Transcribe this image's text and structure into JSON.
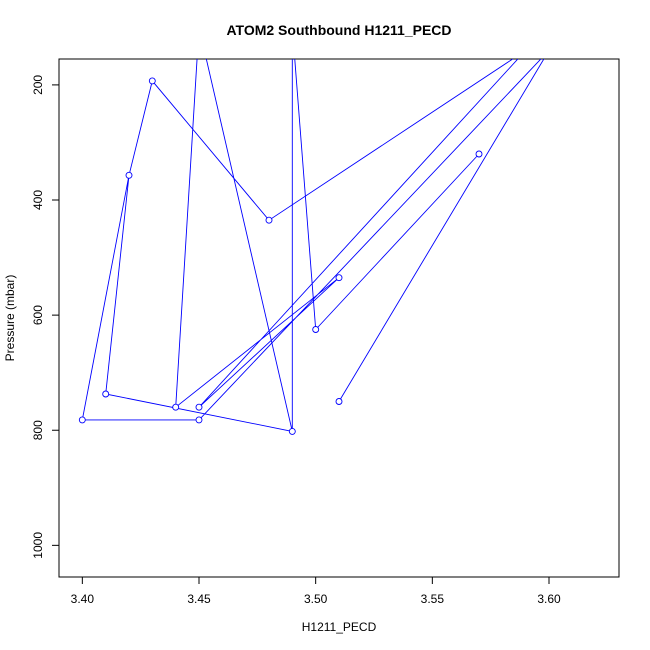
{
  "chart_data": {
    "type": "line",
    "title": "ATOM2 Southbound H1211_PECD",
    "xlabel": "H1211_PECD",
    "ylabel": "Pressure (mbar)",
    "xlim": [
      3.39,
      3.63
    ],
    "ylim": [
      1055,
      155
    ],
    "y_reversed": true,
    "x_ticks": [
      3.4,
      3.45,
      3.5,
      3.55,
      3.6
    ],
    "x_tick_labels": [
      "3.40",
      "3.45",
      "3.50",
      "3.55",
      "3.60"
    ],
    "y_ticks": [
      200,
      400,
      600,
      800,
      1000
    ],
    "y_tick_labels": [
      "200",
      "400",
      "600",
      "800",
      "1000"
    ],
    "series_color": "#0000ff",
    "points": [
      {
        "x": 3.51,
        "y": 750
      },
      {
        "x": 3.6,
        "y": 140
      },
      {
        "x": 3.45,
        "y": 782
      },
      {
        "x": 3.4,
        "y": 782
      },
      {
        "x": 3.42,
        "y": 357
      },
      {
        "x": 3.41,
        "y": 737
      },
      {
        "x": 3.49,
        "y": 802
      },
      {
        "x": 3.45,
        "y": 100
      },
      {
        "x": 3.44,
        "y": 760
      },
      {
        "x": 3.51,
        "y": 535
      },
      {
        "x": 3.45,
        "y": 760
      },
      {
        "x": 3.59,
        "y": 140
      },
      {
        "x": 3.48,
        "y": 435
      },
      {
        "x": 3.43,
        "y": 193
      },
      {
        "x": 3.42,
        "y": 357
      },
      {
        "x": 3.41,
        "y": 737
      },
      {
        "x": 3.49,
        "y": 802
      },
      {
        "x": 3.49,
        "y": 100
      },
      {
        "x": 3.5,
        "y": 625
      },
      {
        "x": 3.57,
        "y": 320
      }
    ],
    "markers": [
      {
        "x": 3.51,
        "y": 750
      },
      {
        "x": 3.57,
        "y": 320
      },
      {
        "x": 3.5,
        "y": 625
      },
      {
        "x": 3.51,
        "y": 535
      },
      {
        "x": 3.48,
        "y": 435
      },
      {
        "x": 3.43,
        "y": 193
      },
      {
        "x": 3.42,
        "y": 357
      },
      {
        "x": 3.41,
        "y": 737
      },
      {
        "x": 3.4,
        "y": 782
      },
      {
        "x": 3.45,
        "y": 782
      },
      {
        "x": 3.44,
        "y": 760
      },
      {
        "x": 3.45,
        "y": 760
      },
      {
        "x": 3.49,
        "y": 802
      }
    ],
    "grid": false,
    "legend": "none"
  }
}
